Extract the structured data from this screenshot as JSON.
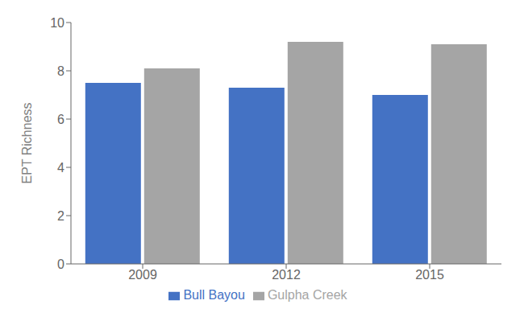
{
  "chart_data": {
    "type": "bar",
    "categories": [
      "2009",
      "2012",
      "2015"
    ],
    "series": [
      {
        "name": "Bull Bayou",
        "color": "#4472C4",
        "values": [
          7.5,
          7.3,
          7.0
        ]
      },
      {
        "name": "Gulpha Creek",
        "color": "#A5A5A5",
        "values": [
          8.1,
          9.2,
          9.1
        ]
      }
    ],
    "ylabel": "EPT Richness",
    "ylim": [
      0,
      10
    ],
    "yticks": [
      0,
      2,
      4,
      6,
      8,
      10
    ],
    "grid": false,
    "legend": "bottom"
  }
}
